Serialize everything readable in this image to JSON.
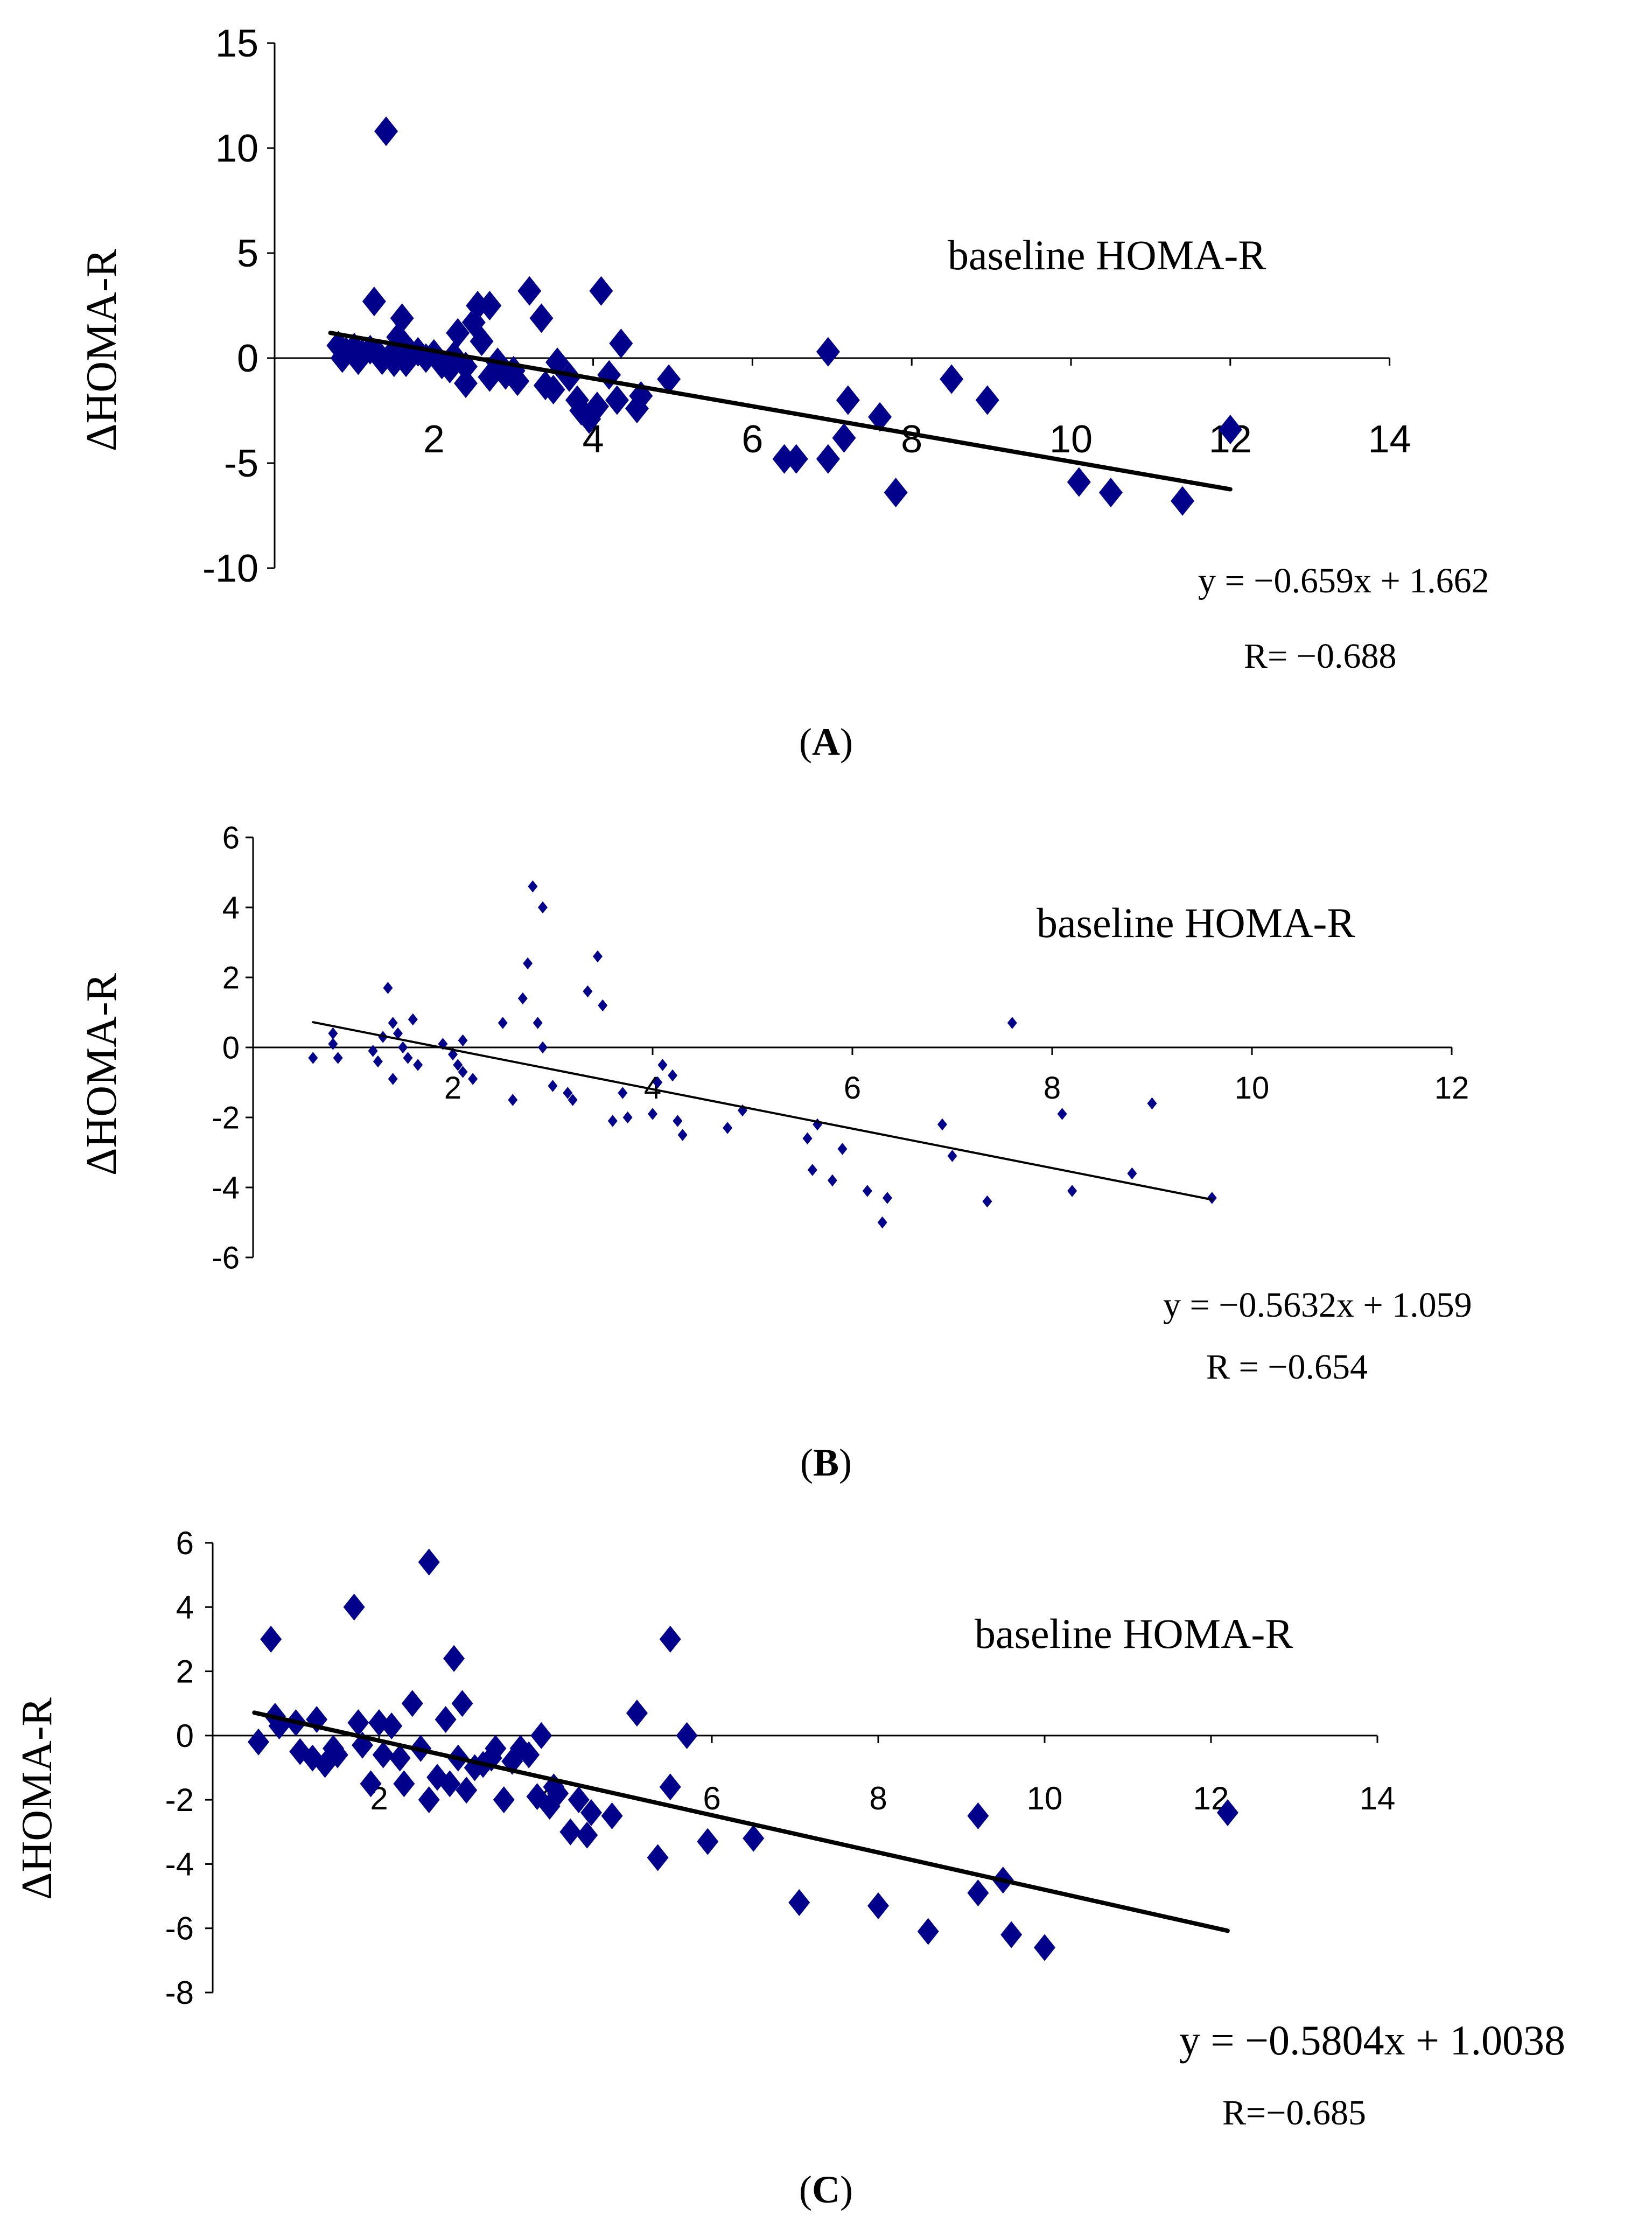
{
  "figure": {
    "panels": [
      "(A)",
      "(B)",
      "(C)"
    ]
  },
  "colors": {
    "marker": "#00008B",
    "axis": "#000000",
    "trend": "#000000"
  },
  "chart_data": [
    {
      "type": "scatter",
      "panel_label": "(A)",
      "panel_letter": "A",
      "xlabel": "baseline HOMA-R",
      "ylabel": "ΔHOMA-R",
      "xlim": [
        0,
        14
      ],
      "ylim": [
        -10,
        15
      ],
      "xticks": [
        2,
        4,
        6,
        8,
        10,
        12,
        14
      ],
      "yticks": [
        15,
        10,
        5,
        0,
        -5,
        -10
      ],
      "trendline": {
        "slope": -0.659,
        "intercept": 1.662,
        "x_range": [
          0.7,
          12
        ]
      },
      "equation": "y = −0.659x + 1.662",
      "r_text": "R= −0.688",
      "marker_size": "large",
      "points": [
        [
          0.8,
          0.6
        ],
        [
          0.85,
          0.0
        ],
        [
          0.9,
          0.3
        ],
        [
          1.0,
          0.5
        ],
        [
          1.05,
          -0.1
        ],
        [
          1.1,
          0.2
        ],
        [
          1.2,
          0.4
        ],
        [
          1.25,
          2.7
        ],
        [
          1.3,
          0.2
        ],
        [
          1.35,
          -0.1
        ],
        [
          1.4,
          10.8
        ],
        [
          1.45,
          0.1
        ],
        [
          1.5,
          -0.2
        ],
        [
          1.55,
          1.0
        ],
        [
          1.6,
          1.9
        ],
        [
          1.65,
          -0.2
        ],
        [
          1.7,
          0.3
        ],
        [
          1.8,
          0.3
        ],
        [
          1.9,
          0.0
        ],
        [
          2.0,
          0.2
        ],
        [
          2.1,
          -0.3
        ],
        [
          2.2,
          -0.5
        ],
        [
          2.25,
          0.1
        ],
        [
          2.3,
          1.2
        ],
        [
          2.4,
          -0.4
        ],
        [
          2.4,
          -1.2
        ],
        [
          2.5,
          1.7
        ],
        [
          2.55,
          2.5
        ],
        [
          2.6,
          0.8
        ],
        [
          2.7,
          2.5
        ],
        [
          2.7,
          -0.9
        ],
        [
          2.8,
          -0.2
        ],
        [
          2.9,
          -0.8
        ],
        [
          3.0,
          -0.6
        ],
        [
          3.05,
          -1.1
        ],
        [
          3.2,
          3.2
        ],
        [
          3.35,
          1.9
        ],
        [
          3.4,
          -1.3
        ],
        [
          3.5,
          -1.5
        ],
        [
          3.55,
          -0.2
        ],
        [
          3.7,
          -0.9
        ],
        [
          3.8,
          -2.0
        ],
        [
          3.85,
          -2.5
        ],
        [
          3.95,
          -2.9
        ],
        [
          4.05,
          -2.3
        ],
        [
          4.1,
          3.2
        ],
        [
          4.2,
          -0.8
        ],
        [
          4.3,
          -2.0
        ],
        [
          4.35,
          0.7
        ],
        [
          4.55,
          -2.4
        ],
        [
          4.6,
          -1.8
        ],
        [
          4.95,
          -1.0
        ],
        [
          6.4,
          -4.8
        ],
        [
          6.55,
          -4.8
        ],
        [
          6.95,
          0.3
        ],
        [
          6.95,
          -4.8
        ],
        [
          7.15,
          -3.8
        ],
        [
          7.2,
          -2.0
        ],
        [
          7.6,
          -2.8
        ],
        [
          7.8,
          -6.4
        ],
        [
          8.5,
          -1.0
        ],
        [
          8.95,
          -2.0
        ],
        [
          10.1,
          -5.9
        ],
        [
          10.5,
          -6.4
        ],
        [
          11.4,
          -6.8
        ],
        [
          12.0,
          -3.4
        ]
      ]
    },
    {
      "type": "scatter",
      "panel_label": "(B)",
      "panel_letter": "B",
      "xlabel": "baseline HOMA-R",
      "ylabel": "ΔHOMA-R",
      "xlim": [
        0,
        12
      ],
      "ylim": [
        -6,
        6
      ],
      "xticks": [
        2,
        4,
        6,
        8,
        10,
        12
      ],
      "yticks": [
        6,
        4,
        2,
        0,
        -2,
        -4,
        -6
      ],
      "trendline": {
        "slope": -0.5632,
        "intercept": 1.059,
        "x_range": [
          0.6,
          9.6
        ]
      },
      "equation": "y = −0.5632x + 1.059",
      "r_text": "R = −0.654",
      "marker_size": "small",
      "points": [
        [
          0.6,
          -0.3
        ],
        [
          0.8,
          0.4
        ],
        [
          0.8,
          0.1
        ],
        [
          0.85,
          -0.3
        ],
        [
          1.2,
          -0.1
        ],
        [
          1.25,
          -0.4
        ],
        [
          1.3,
          0.3
        ],
        [
          1.35,
          1.7
        ],
        [
          1.4,
          0.7
        ],
        [
          1.4,
          -0.9
        ],
        [
          1.45,
          0.4
        ],
        [
          1.5,
          0.0
        ],
        [
          1.55,
          -0.3
        ],
        [
          1.6,
          0.8
        ],
        [
          1.65,
          -0.5
        ],
        [
          1.9,
          0.1
        ],
        [
          2.0,
          -0.2
        ],
        [
          2.05,
          -0.5
        ],
        [
          2.1,
          -0.7
        ],
        [
          2.1,
          0.2
        ],
        [
          2.2,
          -0.9
        ],
        [
          2.5,
          0.7
        ],
        [
          2.6,
          -1.5
        ],
        [
          2.7,
          1.4
        ],
        [
          2.75,
          2.4
        ],
        [
          2.8,
          4.6
        ],
        [
          2.85,
          0.7
        ],
        [
          2.9,
          4.0
        ],
        [
          2.9,
          0.0
        ],
        [
          3.0,
          -1.1
        ],
        [
          3.15,
          -1.3
        ],
        [
          3.2,
          -1.5
        ],
        [
          3.35,
          1.6
        ],
        [
          3.45,
          2.6
        ],
        [
          3.5,
          1.2
        ],
        [
          3.6,
          -2.1
        ],
        [
          3.7,
          -1.3
        ],
        [
          3.75,
          -2.0
        ],
        [
          4.0,
          -1.9
        ],
        [
          4.05,
          -1.0
        ],
        [
          4.1,
          -0.5
        ],
        [
          4.2,
          -0.8
        ],
        [
          4.25,
          -2.1
        ],
        [
          4.3,
          -2.5
        ],
        [
          4.75,
          -2.3
        ],
        [
          4.9,
          -1.8
        ],
        [
          5.55,
          -2.6
        ],
        [
          5.6,
          -3.5
        ],
        [
          5.65,
          -2.2
        ],
        [
          5.8,
          -3.8
        ],
        [
          5.9,
          -2.9
        ],
        [
          6.15,
          -4.1
        ],
        [
          6.3,
          -5.0
        ],
        [
          6.35,
          -4.3
        ],
        [
          6.9,
          -2.2
        ],
        [
          7.0,
          -3.1
        ],
        [
          7.35,
          -4.4
        ],
        [
          7.6,
          0.7
        ],
        [
          8.1,
          -1.9
        ],
        [
          8.2,
          -4.1
        ],
        [
          8.8,
          -3.6
        ],
        [
          9.0,
          -1.6
        ],
        [
          9.6,
          -4.3
        ]
      ]
    },
    {
      "type": "scatter",
      "panel_label": "(C)",
      "panel_letter": "C",
      "xlabel": "baseline HOMA-R",
      "ylabel": "ΔHOMA-R",
      "xlim": [
        0,
        14
      ],
      "ylim": [
        -8,
        6
      ],
      "xticks": [
        2,
        4,
        6,
        8,
        10,
        12,
        14
      ],
      "yticks": [
        6,
        4,
        2,
        0,
        -2,
        -4,
        -6,
        -8
      ],
      "trendline": {
        "slope": -0.5804,
        "intercept": 1.0038,
        "x_range": [
          0.5,
          12.2
        ]
      },
      "equation": "y = −0.5804x + 1.0038",
      "r_text": "R=−0.685",
      "marker_size": "large",
      "points": [
        [
          0.55,
          -0.2
        ],
        [
          0.7,
          3.0
        ],
        [
          0.75,
          0.6
        ],
        [
          0.8,
          0.3
        ],
        [
          1.0,
          0.4
        ],
        [
          1.05,
          -0.5
        ],
        [
          1.2,
          -0.7
        ],
        [
          1.25,
          0.5
        ],
        [
          1.35,
          -0.9
        ],
        [
          1.45,
          -0.4
        ],
        [
          1.5,
          -0.6
        ],
        [
          1.7,
          4.0
        ],
        [
          1.75,
          0.4
        ],
        [
          1.8,
          -0.3
        ],
        [
          1.9,
          -1.5
        ],
        [
          2.0,
          0.4
        ],
        [
          2.05,
          -0.6
        ],
        [
          2.15,
          0.3
        ],
        [
          2.25,
          -0.7
        ],
        [
          2.3,
          -1.5
        ],
        [
          2.4,
          1.0
        ],
        [
          2.5,
          -0.4
        ],
        [
          2.6,
          5.4
        ],
        [
          2.6,
          -2.0
        ],
        [
          2.7,
          -1.3
        ],
        [
          2.8,
          0.5
        ],
        [
          2.85,
          -1.5
        ],
        [
          2.9,
          2.4
        ],
        [
          2.95,
          -0.7
        ],
        [
          3.0,
          1.0
        ],
        [
          3.05,
          -1.7
        ],
        [
          3.15,
          -1.0
        ],
        [
          3.25,
          -0.9
        ],
        [
          3.35,
          -0.7
        ],
        [
          3.4,
          -0.4
        ],
        [
          3.5,
          -2.0
        ],
        [
          3.6,
          -0.8
        ],
        [
          3.7,
          -0.4
        ],
        [
          3.8,
          -0.6
        ],
        [
          3.9,
          -1.9
        ],
        [
          3.95,
          0.0
        ],
        [
          4.05,
          -2.2
        ],
        [
          4.1,
          -1.6
        ],
        [
          4.15,
          -1.8
        ],
        [
          4.3,
          -3.0
        ],
        [
          4.4,
          -2.0
        ],
        [
          4.5,
          -3.1
        ],
        [
          4.55,
          -2.4
        ],
        [
          4.8,
          -2.5
        ],
        [
          5.1,
          0.7
        ],
        [
          5.35,
          -3.8
        ],
        [
          5.5,
          3.0
        ],
        [
          5.5,
          -1.6
        ],
        [
          5.7,
          0.0
        ],
        [
          5.95,
          -3.3
        ],
        [
          6.5,
          -3.2
        ],
        [
          7.05,
          -5.2
        ],
        [
          8.0,
          -5.3
        ],
        [
          8.6,
          -6.1
        ],
        [
          9.2,
          -2.5
        ],
        [
          9.2,
          -4.9
        ],
        [
          9.5,
          -4.5
        ],
        [
          9.6,
          -6.2
        ],
        [
          10.0,
          -6.6
        ],
        [
          12.2,
          -2.4
        ]
      ]
    }
  ]
}
